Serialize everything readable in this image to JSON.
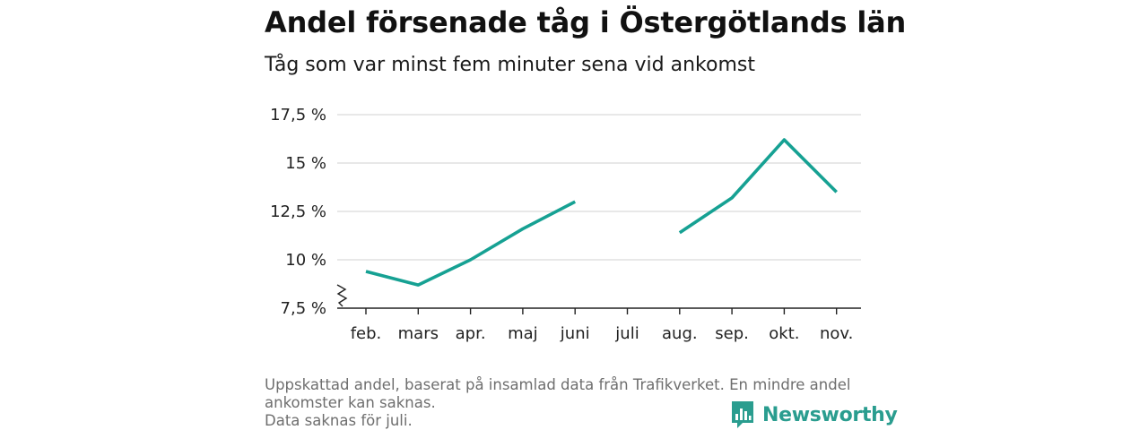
{
  "header": {
    "title": "Andel försenade tåg i Östergötlands län",
    "subtitle": "Tåg som var minst fem minuter sena vid ankomst"
  },
  "chart_data": {
    "type": "line",
    "title": "Andel försenade tåg i Östergötlands län",
    "subtitle": "Tåg som var minst fem minuter sena vid ankomst",
    "categories": [
      "feb.",
      "mars",
      "apr.",
      "maj",
      "juni",
      "juli",
      "aug.",
      "sep.",
      "okt.",
      "nov."
    ],
    "series": [
      {
        "values": [
          9.4,
          8.7,
          10.0,
          11.6,
          13.0,
          null,
          11.4,
          13.2,
          16.2,
          13.5
        ],
        "color": "#16a193"
      }
    ],
    "ylim": [
      7.5,
      17.5
    ],
    "yticks": [
      7.5,
      10,
      12.5,
      15,
      17.5
    ],
    "ytick_labels": [
      "7,5 %",
      "10 %",
      "12,5 %",
      "15 %",
      "17,5 %"
    ],
    "grid": "horizontal",
    "axis_break": true,
    "legend": "none",
    "xlabel": "",
    "ylabel": ""
  },
  "footnote": {
    "lines": [
      "Uppskattad andel, baserat på insamlad data från Trafikverket. En mindre andel",
      "ankomster kan saknas.",
      "Data saknas för juli."
    ]
  },
  "brand": {
    "name": "Newsworthy",
    "logo_icon": "bar-chart-speech-bubble-icon",
    "color": "#2a9d8f"
  }
}
